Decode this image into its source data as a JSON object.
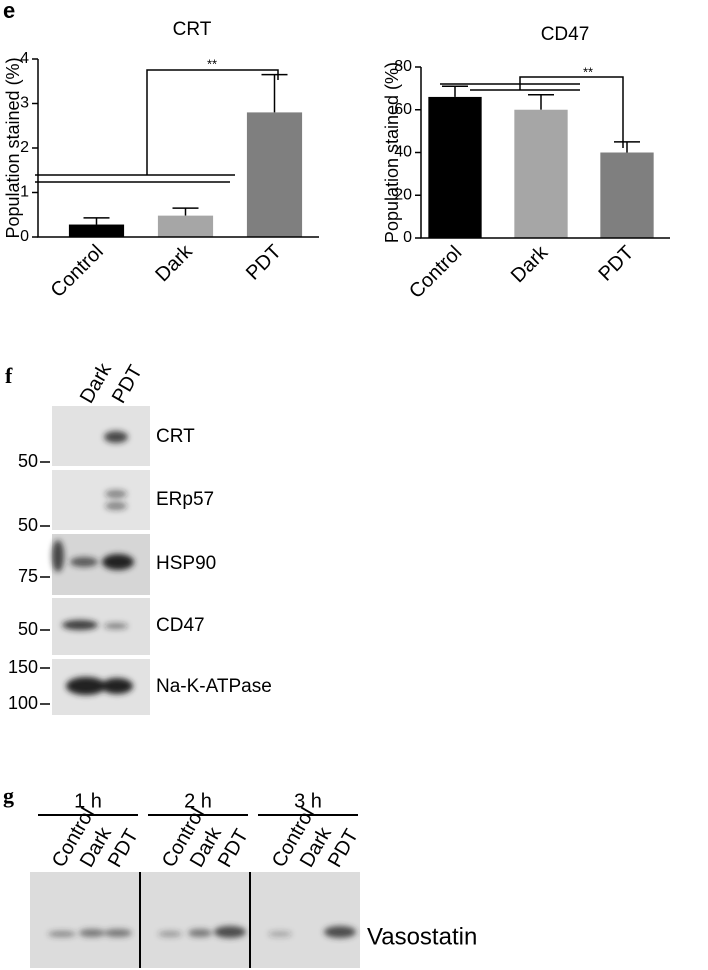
{
  "panel_labels": [
    "e",
    "f",
    "g"
  ],
  "chart_data": [
    {
      "type": "bar",
      "title": "CRT",
      "y_label": "Population stained (%)",
      "categories": [
        "Control",
        "Dark",
        "PDT"
      ],
      "values": [
        0.28,
        0.48,
        2.8
      ],
      "errors": [
        0.15,
        0.17,
        0.85
      ],
      "colors": [
        "#000000",
        "#a6a6a6",
        "#7f7f7f"
      ],
      "ylim": [
        0,
        4
      ],
      "yticks": [
        0,
        1,
        2,
        3,
        4
      ],
      "annotation": "**"
    },
    {
      "type": "bar",
      "title": "CD47",
      "y_label": "Population stained (%)",
      "categories": [
        "Control",
        "Dark",
        "PDT"
      ],
      "values": [
        66,
        60,
        40
      ],
      "errors": [
        5,
        7,
        5
      ],
      "colors": [
        "#000000",
        "#a6a6a6",
        "#7f7f7f"
      ],
      "ylim": [
        0,
        80
      ],
      "yticks": [
        0,
        20,
        40,
        60,
        80
      ],
      "annotation": "**"
    }
  ],
  "blot_f": {
    "lanes": [
      "Dark",
      "PDT"
    ],
    "rows": [
      {
        "markers": [
          "50"
        ],
        "label": "CRT"
      },
      {
        "markers": [
          "50"
        ],
        "label": "ERp57"
      },
      {
        "markers": [
          "75"
        ],
        "label": "HSP90"
      },
      {
        "markers": [
          "50"
        ],
        "label": "CD47"
      },
      {
        "markers": [
          "150",
          "100"
        ],
        "label": "Na-K-ATPase"
      }
    ]
  },
  "blot_g": {
    "times": [
      "1 h",
      "2 h",
      "3 h"
    ],
    "lanes": [
      "Control",
      "Dark",
      "PDT"
    ],
    "label": "Vasostatin"
  }
}
